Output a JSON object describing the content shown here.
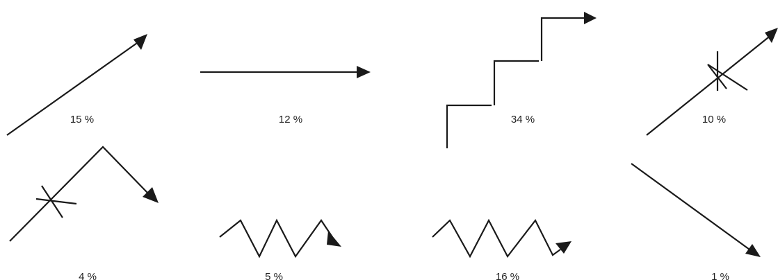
{
  "panels": [
    {
      "id": "diagonal-up",
      "label": "15 %"
    },
    {
      "id": "horizontal",
      "label": "12 %"
    },
    {
      "id": "staircase",
      "label": "34 %"
    },
    {
      "id": "diagonal-up-crossed",
      "label": "10 %"
    },
    {
      "id": "crossed-peak",
      "label": "4 %"
    },
    {
      "id": "zigzag-short",
      "label": "5 %"
    },
    {
      "id": "zigzag-long",
      "label": "16 %"
    },
    {
      "id": "diagonal-down",
      "label": "1 %"
    }
  ]
}
